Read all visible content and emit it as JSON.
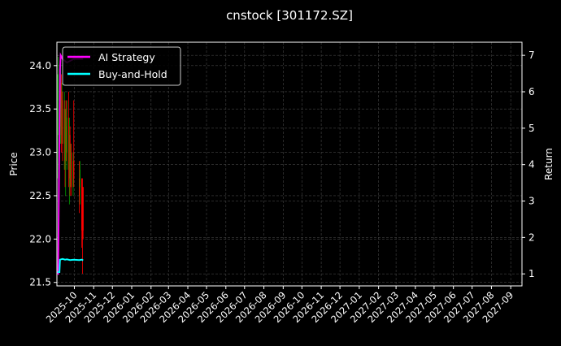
{
  "chart_data": {
    "type": "candlestick+line",
    "title": "cnstock [301172.SZ]",
    "ylabel_left": "Price",
    "ylabel_right": "Return",
    "ylim_left": [
      21.46,
      24.27
    ],
    "ylim_right": [
      0.67,
      7.36
    ],
    "xlim": [
      "2025-09-03",
      "2027-09-19"
    ],
    "grid": true,
    "legend_placement": "upper-left",
    "colors": {
      "up": "#00a000",
      "down": "#ff0000",
      "strategy": "#ff00ff",
      "buyhold": "#00ffff",
      "background": "#000000",
      "grid": "#444444"
    },
    "left_ticks": [
      "21.5",
      "22.0",
      "22.5",
      "23.0",
      "23.5",
      "24.0"
    ],
    "right_ticks": [
      "1",
      "2",
      "3",
      "4",
      "5",
      "6",
      "7"
    ],
    "x_ticks": [
      "2025-10",
      "2025-11",
      "2025-12",
      "2026-01",
      "2026-02",
      "2026-03",
      "2026-04",
      "2026-05",
      "2026-06",
      "2026-07",
      "2026-08",
      "2026-09",
      "2026-10",
      "2026-11",
      "2026-12",
      "2027-01",
      "2027-02",
      "2027-03",
      "2027-04",
      "2027-05",
      "2027-06",
      "2027-07",
      "2027-08",
      "2027-09"
    ],
    "candles": [
      {
        "d": "2025-09-04",
        "o": 22.8,
        "h": 23.9,
        "l": 22.7,
        "c": 23.6
      },
      {
        "d": "2025-09-05",
        "o": 23.6,
        "h": 24.1,
        "l": 23.2,
        "c": 23.9
      },
      {
        "d": "2025-09-08",
        "o": 23.9,
        "h": 24.1,
        "l": 23.3,
        "c": 23.5
      },
      {
        "d": "2025-09-09",
        "o": 23.5,
        "h": 24.0,
        "l": 23.1,
        "c": 23.8
      },
      {
        "d": "2025-09-10",
        "o": 23.8,
        "h": 23.9,
        "l": 23.0,
        "c": 23.2
      },
      {
        "d": "2025-09-11",
        "o": 23.2,
        "h": 23.8,
        "l": 23.1,
        "c": 23.6
      },
      {
        "d": "2025-09-12",
        "o": 23.6,
        "h": 23.7,
        "l": 22.9,
        "c": 23.1
      },
      {
        "d": "2025-09-15",
        "o": 23.1,
        "h": 23.7,
        "l": 22.8,
        "c": 23.5
      },
      {
        "d": "2025-09-16",
        "o": 23.5,
        "h": 23.6,
        "l": 22.6,
        "c": 22.9
      },
      {
        "d": "2025-09-17",
        "o": 22.9,
        "h": 23.5,
        "l": 22.5,
        "c": 23.3
      },
      {
        "d": "2025-09-18",
        "o": 23.3,
        "h": 23.6,
        "l": 22.9,
        "c": 23.0
      },
      {
        "d": "2025-09-19",
        "o": 23.0,
        "h": 23.6,
        "l": 22.8,
        "c": 23.4
      },
      {
        "d": "2025-09-22",
        "o": 23.4,
        "h": 23.7,
        "l": 22.6,
        "c": 22.8
      },
      {
        "d": "2025-09-23",
        "o": 22.8,
        "h": 23.4,
        "l": 22.4,
        "c": 23.2
      },
      {
        "d": "2025-09-24",
        "o": 23.2,
        "h": 23.3,
        "l": 22.5,
        "c": 22.7
      },
      {
        "d": "2025-09-25",
        "o": 22.7,
        "h": 23.1,
        "l": 22.6,
        "c": 23.0
      },
      {
        "d": "2025-09-26",
        "o": 23.0,
        "h": 23.1,
        "l": 22.5,
        "c": 22.6
      },
      {
        "d": "2025-09-29",
        "o": 22.6,
        "h": 23.0,
        "l": 22.5,
        "c": 22.9
      },
      {
        "d": "2025-09-30",
        "o": 22.9,
        "h": 23.6,
        "l": 22.6,
        "c": 22.7
      },
      {
        "d": "2025-10-09",
        "o": 22.7,
        "h": 22.9,
        "l": 22.3,
        "c": 22.5
      },
      {
        "d": "2025-10-10",
        "o": 22.6,
        "h": 22.9,
        "l": 22.4,
        "c": 22.8
      },
      {
        "d": "2025-10-13",
        "o": 22.7,
        "h": 22.7,
        "l": 21.9,
        "c": 22.1
      },
      {
        "d": "2025-10-14",
        "o": 22.6,
        "h": 22.7,
        "l": 21.6,
        "c": 22.0
      },
      {
        "d": "2025-10-15",
        "o": 22.6,
        "h": 22.6,
        "l": 22.0,
        "c": 22.1
      }
    ],
    "series": [
      {
        "name": "AI Strategy",
        "axis": "right",
        "points": [
          [
            "2025-09-04",
            1.0
          ],
          [
            "2025-09-05",
            1.0
          ],
          [
            "2025-09-08",
            6.6
          ],
          [
            "2025-09-09",
            7.0
          ],
          [
            "2025-09-12",
            6.9
          ],
          [
            "2025-09-19",
            6.8
          ],
          [
            "2025-09-30",
            6.9
          ],
          [
            "2025-10-15",
            6.9
          ]
        ]
      },
      {
        "name": "Buy-and-Hold",
        "axis": "right",
        "points": [
          [
            "2025-09-04",
            1.05
          ],
          [
            "2025-09-07",
            1.05
          ],
          [
            "2025-09-08",
            1.39
          ],
          [
            "2025-09-12",
            1.41
          ],
          [
            "2025-09-16",
            1.39
          ],
          [
            "2025-09-19",
            1.4
          ],
          [
            "2025-09-24",
            1.38
          ],
          [
            "2025-09-30",
            1.39
          ],
          [
            "2025-10-09",
            1.38
          ],
          [
            "2025-10-13",
            1.39
          ],
          [
            "2025-10-15",
            1.37
          ]
        ]
      }
    ]
  }
}
